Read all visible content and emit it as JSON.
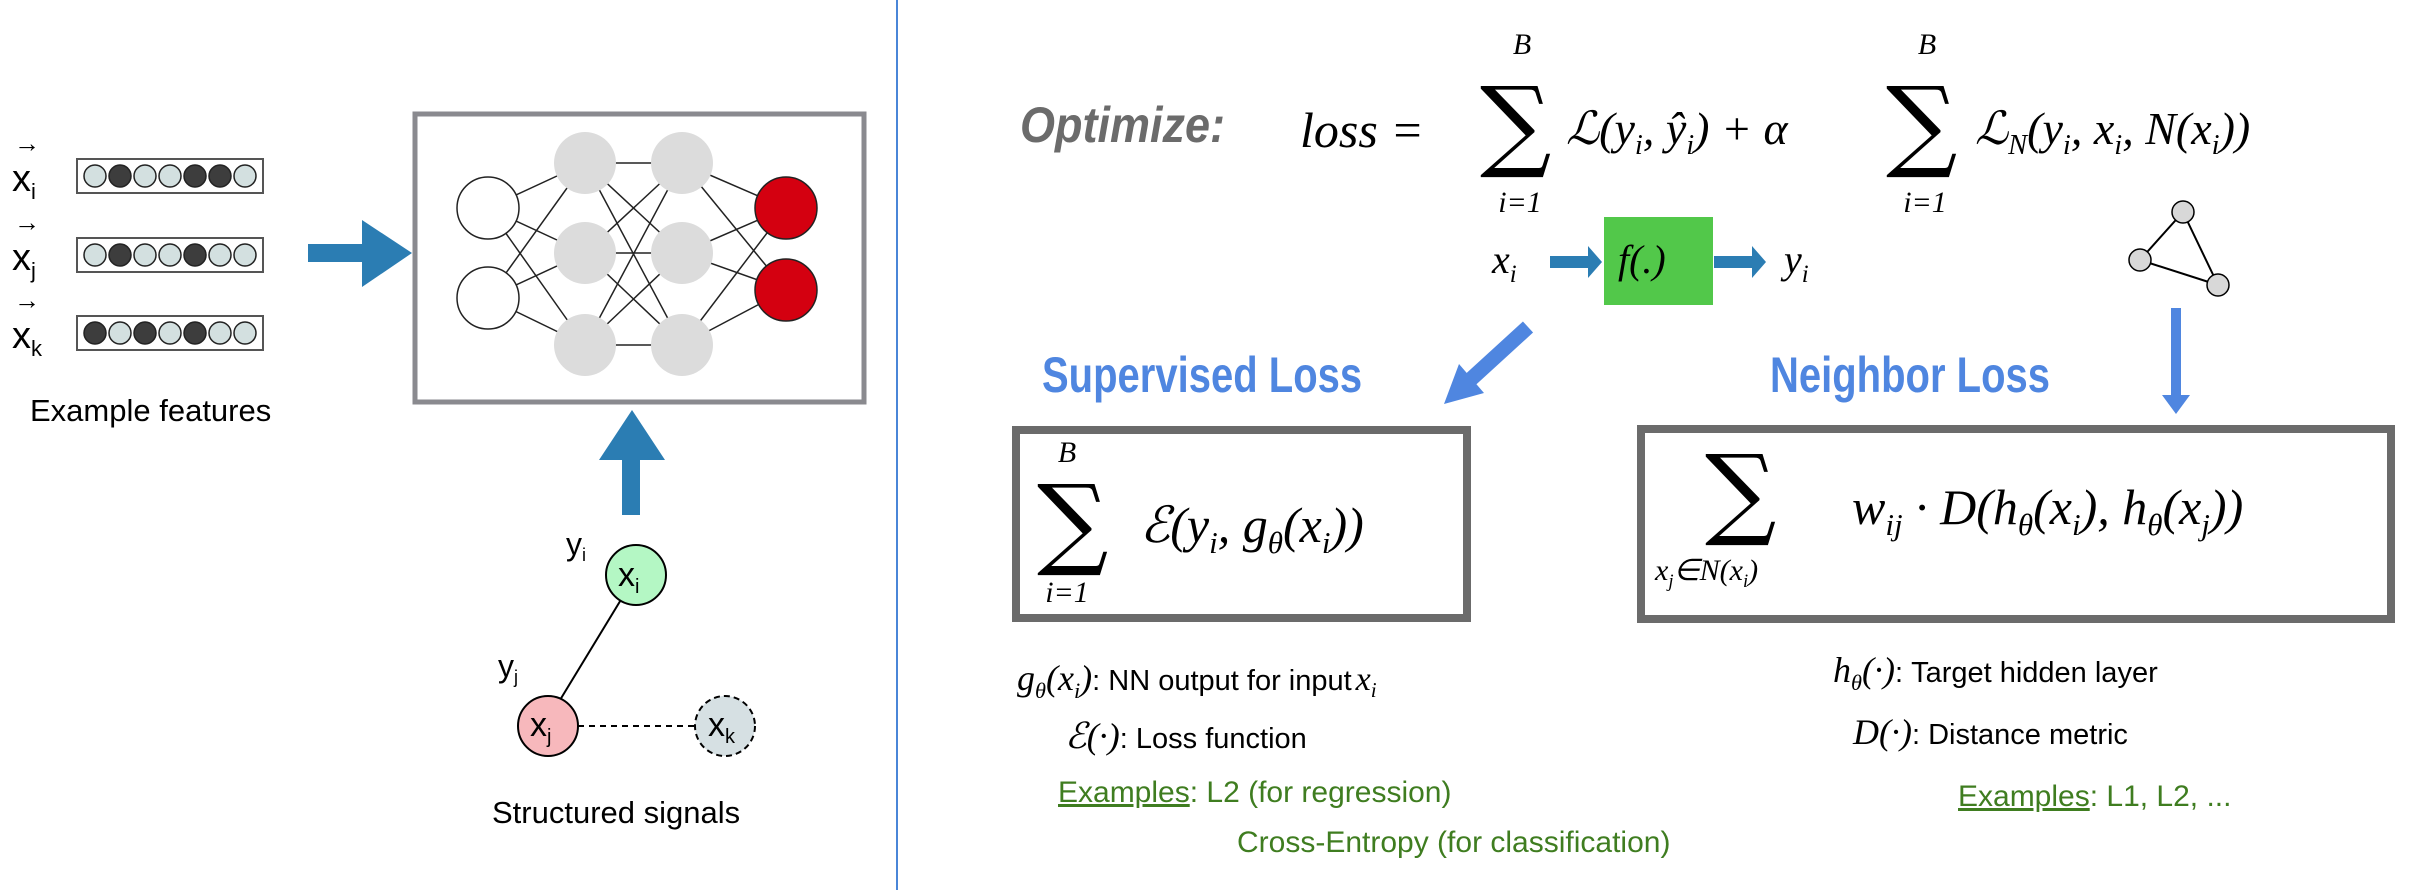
{
  "left_panel": {
    "feature_vectors": [
      {
        "symbol": "x",
        "subscript": "i",
        "pattern": [
          0,
          1,
          0,
          0,
          1,
          1,
          0
        ]
      },
      {
        "symbol": "x",
        "subscript": "j",
        "pattern": [
          0,
          1,
          0,
          0,
          1,
          0,
          0
        ]
      },
      {
        "symbol": "x",
        "subscript": "k",
        "pattern": [
          1,
          0,
          1,
          0,
          1,
          0,
          0
        ]
      }
    ],
    "features_caption": "Example features",
    "graph": {
      "node_i": {
        "symbol": "x",
        "subscript": "i",
        "label": "y",
        "label_sub": "i"
      },
      "node_j": {
        "symbol": "x",
        "subscript": "j",
        "label": "y",
        "label_sub": "j"
      },
      "node_k": {
        "symbol": "x",
        "subscript": "k"
      }
    },
    "signals_caption": "Structured signals"
  },
  "right_panel": {
    "optimize_label": "Optimize:",
    "loss_lhs": "loss =",
    "sum_upper": "B",
    "sum_lower": "i=1",
    "term1": [
      {
        "t": "ℒ(y"
      },
      {
        "s": "i"
      },
      {
        "t": ", ŷ"
      },
      {
        "s": "i"
      },
      {
        "t": ") + α"
      }
    ],
    "term2": [
      {
        "t": "ℒ"
      },
      {
        "s": "N"
      },
      {
        "t": "(y"
      },
      {
        "s": "i"
      },
      {
        "t": ", x"
      },
      {
        "s": "i"
      },
      {
        "t": ", N(x"
      },
      {
        "s": "i"
      },
      {
        "t": "))"
      }
    ],
    "flow": {
      "input": [
        {
          "t": "x"
        },
        {
          "s": "i"
        }
      ],
      "function": "f(.)",
      "output": [
        {
          "t": "y"
        },
        {
          "s": "i"
        }
      ]
    },
    "supervised_heading": "Supervised Loss",
    "neighbor_heading": "Neighbor Loss",
    "supervised_formula": [
      {
        "t": "ℰ(y"
      },
      {
        "s": "i"
      },
      {
        "t": ", g"
      },
      {
        "s": "θ"
      },
      {
        "t": "(x"
      },
      {
        "s": "i"
      },
      {
        "t": "))"
      }
    ],
    "neighbor_sum_lower": [
      {
        "t": "x"
      },
      {
        "s": "j"
      },
      {
        "t": "∈N(x"
      },
      {
        "s": "i"
      },
      {
        "t": ")"
      }
    ],
    "neighbor_formula": [
      {
        "t": "w"
      },
      {
        "s": "ij"
      },
      {
        "t": " · D(h"
      },
      {
        "s": "θ"
      },
      {
        "t": "(x"
      },
      {
        "s": "i"
      },
      {
        "t": "), h"
      },
      {
        "s": "θ"
      },
      {
        "t": "(x"
      },
      {
        "s": "j"
      },
      {
        "t": "))"
      }
    ],
    "supervised_notes": [
      {
        "symbol": [
          {
            "t": "g"
          },
          {
            "s": "θ"
          },
          {
            "t": "(x"
          },
          {
            "s": "i"
          },
          {
            "t": ")"
          }
        ],
        "text": ": NN output for input",
        "trailing": [
          {
            "t": "x"
          },
          {
            "s": "i"
          }
        ]
      },
      {
        "symbol": [
          {
            "t": "ℰ(·)"
          }
        ],
        "text": ": Loss function"
      }
    ],
    "supervised_examples": {
      "label": "Examples",
      "first": ": L2 (for regression)",
      "second": "Cross-Entropy (for classification)"
    },
    "neighbor_notes": [
      {
        "symbol": [
          {
            "t": "h"
          },
          {
            "s": "θ"
          },
          {
            "t": "(·)"
          }
        ],
        "text": ": Target hidden layer"
      },
      {
        "symbol": [
          {
            "t": "D(·)"
          }
        ],
        "text": ": Distance metric"
      }
    ],
    "neighbor_examples": {
      "label": "Examples",
      "text": ": L1, L2, ..."
    }
  },
  "colors": {
    "divider": "#4a86d8",
    "left_arrows": "#2b7db3",
    "right_arrows": "#4f86e0",
    "headings": "#4f86e0",
    "output_nodes": "#d40010",
    "hidden_nodes": "#dcdcdc",
    "function_box": "#52c84a",
    "node_i": "#b4f7c4",
    "node_j": "#f7b8bc",
    "node_k": "#d6e0e3",
    "examples_text": "#3f7d20",
    "box_border": "#6b6b6b"
  }
}
